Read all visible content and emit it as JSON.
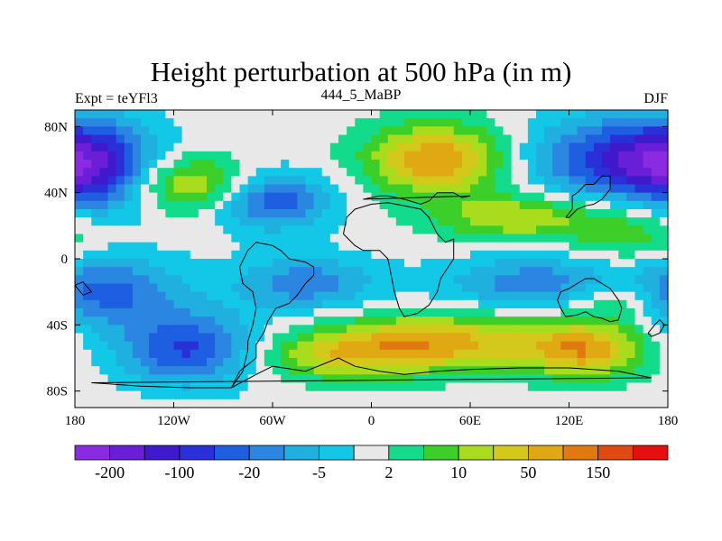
{
  "header": {
    "title": "Height perturbation at 500 hPa (in m)",
    "left_label": "Expt = teYFl3",
    "center_label": "444_5_MaBP",
    "right_label": "DJF"
  },
  "colors": {
    "land_outline": "#000000",
    "zero_band": "#e8e8e8"
  },
  "chart_data": {
    "type": "heatmap",
    "title": "Height perturbation at 500 hPa (in m)",
    "projection": "cylindrical-equidistant",
    "xlim": [
      -180,
      180
    ],
    "ylim": [
      -90,
      90
    ],
    "x_ticks": [
      {
        "value": -180,
        "label": "180"
      },
      {
        "value": -120,
        "label": "120W"
      },
      {
        "value": -60,
        "label": "60W"
      },
      {
        "value": 0,
        "label": "0"
      },
      {
        "value": 60,
        "label": "60E"
      },
      {
        "value": 120,
        "label": "120E"
      },
      {
        "value": 180,
        "label": "180"
      }
    ],
    "y_ticks": [
      {
        "value": 80,
        "label": "80N"
      },
      {
        "value": 40,
        "label": "40N"
      },
      {
        "value": 0,
        "label": "0"
      },
      {
        "value": -40,
        "label": "40S"
      },
      {
        "value": -80,
        "label": "80S"
      }
    ],
    "colorbar": {
      "colors": [
        "#8a2be2",
        "#6a1ed8",
        "#3f1acc",
        "#2a30d8",
        "#1e5ee0",
        "#2a86e0",
        "#1fb0e0",
        "#12c8e6",
        "#e8e8e8",
        "#12dc8c",
        "#3ccf2a",
        "#aadc1e",
        "#d4c81a",
        "#e0a812",
        "#e07a10",
        "#e04a10",
        "#e60e0e"
      ],
      "label_positions": [
        1,
        3,
        5,
        7,
        9,
        11,
        13,
        15
      ],
      "labels": [
        "-200",
        "-100",
        "-20",
        "-5",
        "2",
        "10",
        "50",
        "150"
      ]
    },
    "anomaly_centers": [
      {
        "lon": -170,
        "lat": 55,
        "level": -3,
        "sx": 28,
        "sy": 20
      },
      {
        "lon": 150,
        "lat": 60,
        "level": -3,
        "sx": 40,
        "sy": 18
      },
      {
        "lon": -60,
        "lat": 35,
        "level": -2.7,
        "sx": 25,
        "sy": 12
      },
      {
        "lon": -165,
        "lat": -20,
        "level": -2.5,
        "sx": 35,
        "sy": 15
      },
      {
        "lon": -110,
        "lat": -55,
        "level": -3,
        "sx": 30,
        "sy": 15
      },
      {
        "lon": -40,
        "lat": -15,
        "level": -2,
        "sx": 30,
        "sy": 12
      },
      {
        "lon": 100,
        "lat": -15,
        "level": -2,
        "sx": 40,
        "sy": 12
      },
      {
        "lon": 40,
        "lat": 60,
        "level": 3.5,
        "sx": 30,
        "sy": 15
      },
      {
        "lon": -110,
        "lat": 45,
        "level": 2.5,
        "sx": 25,
        "sy": 12
      },
      {
        "lon": 90,
        "lat": 25,
        "level": 2.2,
        "sx": 35,
        "sy": 10
      },
      {
        "lon": 160,
        "lat": 15,
        "level": 1.5,
        "sx": 25,
        "sy": 15
      },
      {
        "lon": 40,
        "lat": -50,
        "level": 3,
        "sx": 50,
        "sy": 12
      },
      {
        "lon": 130,
        "lat": -55,
        "level": 3,
        "sx": 25,
        "sy": 12
      },
      {
        "lon": -20,
        "lat": -60,
        "level": 1.8,
        "sx": 40,
        "sy": 10
      },
      {
        "lon": 150,
        "lat": -25,
        "level": 1.8,
        "sx": 20,
        "sy": 10
      }
    ],
    "land_outlines": [
      [
        [
          -85,
          -78
        ],
        [
          -80,
          -68
        ],
        [
          -70,
          -60
        ],
        [
          -70,
          -52
        ],
        [
          -65,
          -44
        ],
        [
          -63,
          -38
        ],
        [
          -58,
          -30
        ],
        [
          -50,
          -27
        ],
        [
          -45,
          -22
        ],
        [
          -40,
          -15
        ],
        [
          -35,
          -10
        ],
        [
          -35,
          -5
        ],
        [
          -40,
          -2
        ],
        [
          -50,
          0
        ],
        [
          -55,
          5
        ],
        [
          -60,
          8
        ],
        [
          -70,
          10
        ],
        [
          -75,
          5
        ],
        [
          -80,
          -5
        ],
        [
          -78,
          -15
        ],
        [
          -72,
          -20
        ],
        [
          -70,
          -30
        ],
        [
          -72,
          -40
        ],
        [
          -75,
          -50
        ],
        [
          -75,
          -55
        ],
        [
          -78,
          -68
        ],
        [
          -85,
          -78
        ]
      ],
      [
        [
          -20,
          -60
        ],
        [
          -10,
          -65
        ],
        [
          5,
          -68
        ],
        [
          20,
          -70
        ],
        [
          40,
          -68
        ],
        [
          60,
          -67
        ],
        [
          90,
          -66
        ],
        [
          120,
          -66
        ],
        [
          150,
          -68
        ],
        [
          170,
          -72
        ],
        [
          -170,
          -75
        ],
        [
          -140,
          -77
        ],
        [
          -110,
          -78
        ],
        [
          -85,
          -78
        ],
        [
          -70,
          -70
        ],
        [
          -60,
          -65
        ],
        [
          -40,
          -68
        ],
        [
          -20,
          -60
        ]
      ],
      [
        [
          -5,
          36
        ],
        [
          5,
          38
        ],
        [
          10,
          38
        ],
        [
          20,
          36
        ],
        [
          30,
          33
        ],
        [
          35,
          35
        ],
        [
          40,
          40
        ],
        [
          50,
          40
        ],
        [
          55,
          37
        ],
        [
          60,
          38
        ],
        [
          -5,
          36
        ]
      ],
      [
        [
          -17,
          15
        ],
        [
          -15,
          25
        ],
        [
          -10,
          30
        ],
        [
          0,
          33
        ],
        [
          10,
          34
        ],
        [
          20,
          32
        ],
        [
          30,
          30
        ],
        [
          35,
          25
        ],
        [
          40,
          15
        ],
        [
          45,
          10
        ],
        [
          50,
          12
        ],
        [
          50,
          0
        ],
        [
          42,
          -12
        ],
        [
          40,
          -20
        ],
        [
          35,
          -28
        ],
        [
          28,
          -33
        ],
        [
          20,
          -35
        ],
        [
          17,
          -30
        ],
        [
          14,
          -20
        ],
        [
          12,
          -10
        ],
        [
          10,
          0
        ],
        [
          5,
          5
        ],
        [
          -5,
          5
        ],
        [
          -10,
          8
        ],
        [
          -17,
          15
        ]
      ],
      [
        [
          115,
          -20
        ],
        [
          120,
          -18
        ],
        [
          130,
          -12
        ],
        [
          135,
          -12
        ],
        [
          140,
          -15
        ],
        [
          145,
          -18
        ],
        [
          150,
          -25
        ],
        [
          152,
          -30
        ],
        [
          150,
          -37
        ],
        [
          145,
          -38
        ],
        [
          140,
          -36
        ],
        [
          135,
          -35
        ],
        [
          130,
          -32
        ],
        [
          125,
          -34
        ],
        [
          118,
          -35
        ],
        [
          115,
          -30
        ],
        [
          113,
          -25
        ],
        [
          115,
          -20
        ]
      ],
      [
        [
          118,
          25
        ],
        [
          122,
          30
        ],
        [
          122,
          38
        ],
        [
          125,
          40
        ],
        [
          130,
          45
        ],
        [
          135,
          45
        ],
        [
          140,
          50
        ],
        [
          145,
          50
        ],
        [
          145,
          42
        ],
        [
          140,
          36
        ],
        [
          135,
          33
        ],
        [
          130,
          32
        ],
        [
          125,
          30
        ],
        [
          120,
          25
        ],
        [
          118,
          25
        ]
      ],
      [
        [
          -180,
          -16
        ],
        [
          -175,
          -14
        ],
        [
          -170,
          -20
        ],
        [
          -175,
          -22
        ],
        [
          -180,
          -16
        ]
      ],
      [
        [
          168,
          -45
        ],
        [
          172,
          -40
        ],
        [
          175,
          -37
        ],
        [
          178,
          -40
        ],
        [
          175,
          -45
        ],
        [
          170,
          -47
        ],
        [
          168,
          -45
        ]
      ]
    ]
  }
}
